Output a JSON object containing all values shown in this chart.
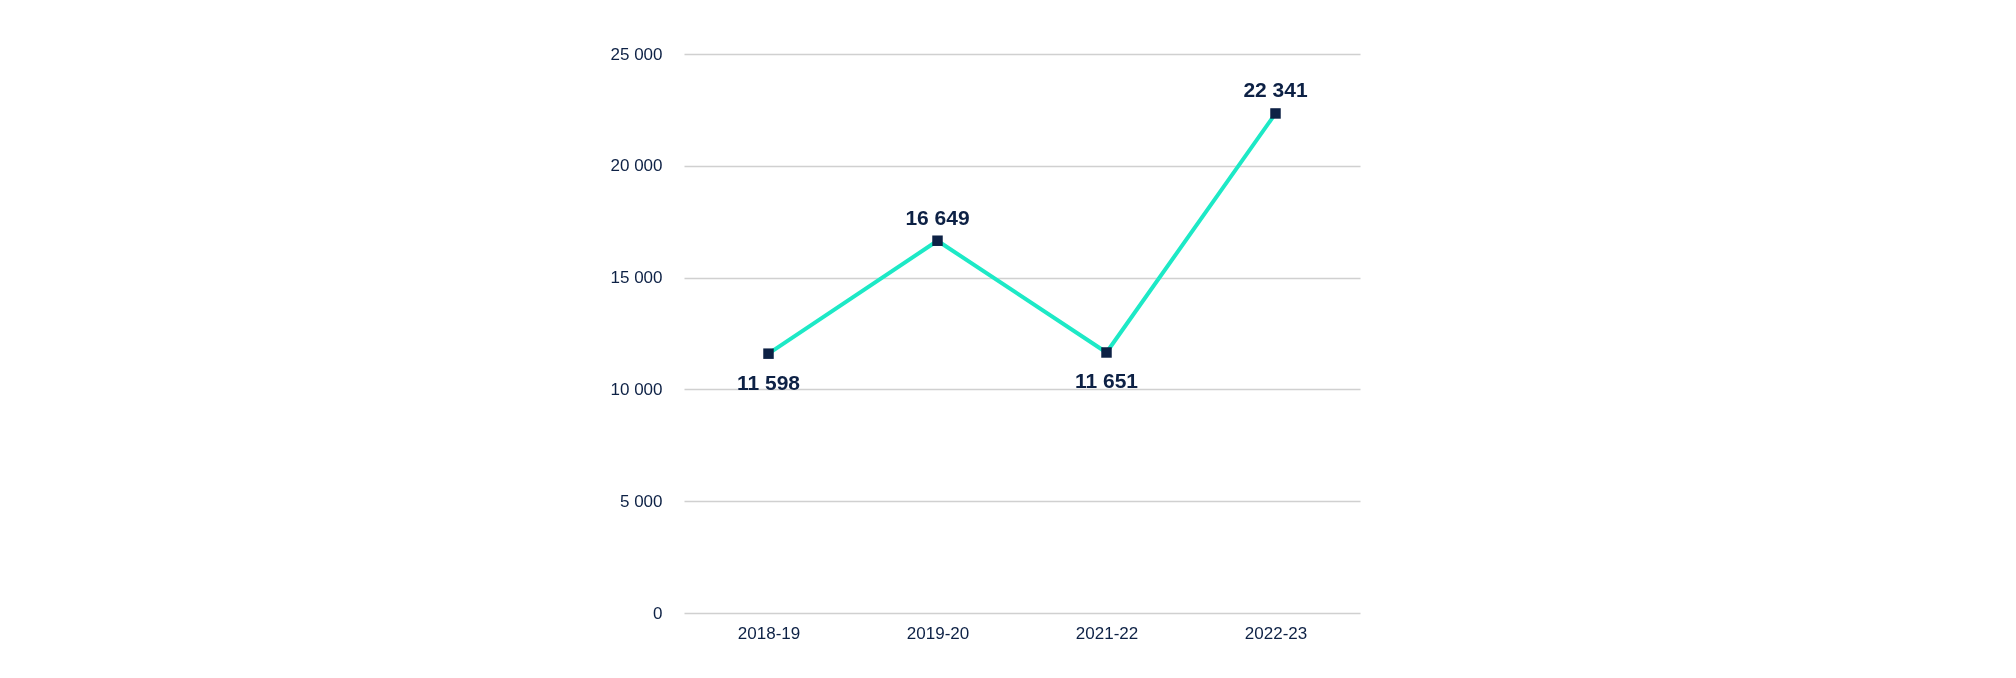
{
  "chart_data": {
    "type": "line",
    "categories": [
      "2018-19",
      "2019-20",
      "2021-22",
      "2022-23"
    ],
    "series": [
      {
        "color": "#1de9c6",
        "values": [
          11598,
          16649,
          11651,
          22341
        ],
        "value_labels": [
          "11 598",
          "16 649",
          "11 651",
          "22 341"
        ]
      }
    ],
    "ylim": [
      0,
      25000
    ],
    "yticks": [
      {
        "value": 0,
        "label": "0"
      },
      {
        "value": 5000,
        "label": "5 000"
      },
      {
        "value": 10000,
        "label": "10 000"
      },
      {
        "value": 15000,
        "label": "15 000"
      },
      {
        "value": 20000,
        "label": "20 000"
      },
      {
        "value": 25000,
        "label": "25 000"
      }
    ],
    "grid": "y",
    "marker": "square",
    "line_style": "solid"
  }
}
